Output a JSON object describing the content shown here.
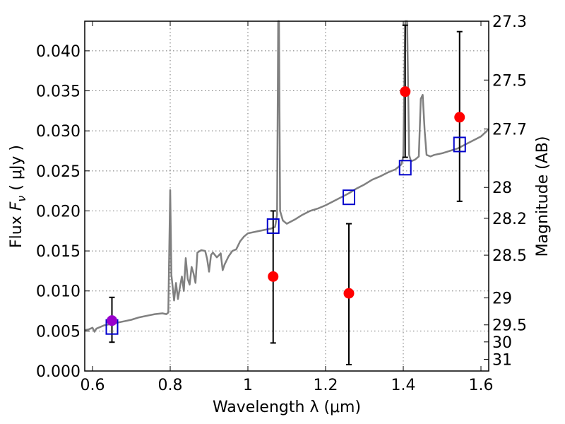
{
  "chart_data": {
    "type": "scatter",
    "xlabel": "Wavelength  λ (μm)",
    "ylabel": "Flux  F_ν  ( μJy )",
    "ylabel_parts": {
      "prefix": "Flux  ",
      "symbol": "F",
      "subscript": "ν",
      "suffix": "  ( μJy )"
    },
    "ylabel_right": "Magnitude (AB)",
    "xlim": [
      0.58,
      1.62
    ],
    "ylim": [
      0.0,
      0.0437
    ],
    "grid": true,
    "x_ticks": [
      0.6,
      0.8,
      1.0,
      1.2,
      1.4,
      1.6
    ],
    "x_tick_labels": [
      "0.6",
      "0.8",
      "1",
      "1.2",
      "1.4",
      "1.6"
    ],
    "y_ticks": [
      0.0,
      0.005,
      0.01,
      0.015,
      0.02,
      0.025,
      0.03,
      0.035,
      0.04
    ],
    "y_tick_labels": [
      "0.000",
      "0.005",
      "0.010",
      "0.015",
      "0.020",
      "0.025",
      "0.030",
      "0.035",
      "0.040"
    ],
    "right_axis": {
      "ticks": [
        27.3,
        27.5,
        27.7,
        28,
        28.2,
        28.5,
        29,
        29.5,
        30,
        31
      ],
      "tick_labels": [
        "27.3",
        "27.5",
        "27.7",
        "28",
        "28.2",
        "28.5",
        "29",
        "29.5",
        "30",
        "31"
      ],
      "zero_point_ujy": 0.0437,
      "zero_point_mag": 27.3
    },
    "template_spectrum": {
      "color": "#808080",
      "points": [
        [
          0.58,
          0.0051
        ],
        [
          0.59,
          0.0052
        ],
        [
          0.6,
          0.0054
        ],
        [
          0.605,
          0.0049
        ],
        [
          0.61,
          0.0053
        ],
        [
          0.62,
          0.0055
        ],
        [
          0.63,
          0.0057
        ],
        [
          0.64,
          0.0058
        ],
        [
          0.66,
          0.006
        ],
        [
          0.68,
          0.0062
        ],
        [
          0.7,
          0.0064
        ],
        [
          0.72,
          0.0067
        ],
        [
          0.74,
          0.0069
        ],
        [
          0.76,
          0.0071
        ],
        [
          0.78,
          0.0072
        ],
        [
          0.79,
          0.0071
        ],
        [
          0.795,
          0.0073
        ],
        [
          0.8,
          0.0226
        ],
        [
          0.803,
          0.012
        ],
        [
          0.81,
          0.0088
        ],
        [
          0.815,
          0.011
        ],
        [
          0.82,
          0.009
        ],
        [
          0.825,
          0.0105
        ],
        [
          0.83,
          0.0118
        ],
        [
          0.835,
          0.01
        ],
        [
          0.84,
          0.0141
        ],
        [
          0.845,
          0.0115
        ],
        [
          0.85,
          0.0108
        ],
        [
          0.855,
          0.013
        ],
        [
          0.86,
          0.0122
        ],
        [
          0.865,
          0.011
        ],
        [
          0.87,
          0.0148
        ],
        [
          0.88,
          0.0151
        ],
        [
          0.89,
          0.015
        ],
        [
          0.895,
          0.014
        ],
        [
          0.9,
          0.0124
        ],
        [
          0.905,
          0.0145
        ],
        [
          0.91,
          0.0148
        ],
        [
          0.92,
          0.0142
        ],
        [
          0.93,
          0.0147
        ],
        [
          0.935,
          0.0126
        ],
        [
          0.94,
          0.0133
        ],
        [
          0.95,
          0.0143
        ],
        [
          0.96,
          0.015
        ],
        [
          0.97,
          0.0152
        ],
        [
          0.98,
          0.0162
        ],
        [
          0.99,
          0.0168
        ],
        [
          1.0,
          0.0172
        ],
        [
          1.02,
          0.0174
        ],
        [
          1.04,
          0.0176
        ],
        [
          1.06,
          0.0178
        ],
        [
          1.07,
          0.018
        ],
        [
          1.075,
          0.0195
        ],
        [
          1.078,
          0.0437
        ],
        [
          1.08,
          0.0437
        ],
        [
          1.083,
          0.02
        ],
        [
          1.09,
          0.0188
        ],
        [
          1.1,
          0.0184
        ],
        [
          1.12,
          0.0189
        ],
        [
          1.14,
          0.0195
        ],
        [
          1.16,
          0.02
        ],
        [
          1.18,
          0.0203
        ],
        [
          1.2,
          0.0207
        ],
        [
          1.22,
          0.0212
        ],
        [
          1.24,
          0.0217
        ],
        [
          1.26,
          0.0222
        ],
        [
          1.28,
          0.0228
        ],
        [
          1.3,
          0.0233
        ],
        [
          1.32,
          0.0239
        ],
        [
          1.34,
          0.0243
        ],
        [
          1.36,
          0.0248
        ],
        [
          1.38,
          0.0252
        ],
        [
          1.395,
          0.0258
        ],
        [
          1.4,
          0.0268
        ],
        [
          1.405,
          0.0437
        ],
        [
          1.41,
          0.0437
        ],
        [
          1.415,
          0.027
        ],
        [
          1.42,
          0.0262
        ],
        [
          1.43,
          0.0264
        ],
        [
          1.44,
          0.0268
        ],
        [
          1.445,
          0.034
        ],
        [
          1.45,
          0.0345
        ],
        [
          1.455,
          0.03
        ],
        [
          1.46,
          0.027
        ],
        [
          1.47,
          0.0268
        ],
        [
          1.48,
          0.027
        ],
        [
          1.5,
          0.0272
        ],
        [
          1.52,
          0.0275
        ],
        [
          1.54,
          0.0278
        ],
        [
          1.56,
          0.0283
        ],
        [
          1.58,
          0.0288
        ],
        [
          1.6,
          0.0293
        ],
        [
          1.62,
          0.0302
        ]
      ]
    },
    "model_photometry": {
      "marker": "open-square",
      "color": "#0000cc",
      "x": [
        0.65,
        1.065,
        1.26,
        1.405,
        1.545
      ],
      "y": [
        0.0055,
        0.0181,
        0.0217,
        0.0254,
        0.0283
      ]
    },
    "observed_photometry": {
      "marker": "filled-circle",
      "color": "#ff0000",
      "x": [
        1.065,
        1.26,
        1.405,
        1.545
      ],
      "y": [
        0.0118,
        0.0097,
        0.0349,
        0.0317
      ],
      "yerr_low": [
        0.0035,
        0.0008,
        0.0267,
        0.0212
      ],
      "yerr_high": [
        0.02,
        0.0184,
        0.0432,
        0.0424
      ]
    },
    "observed_optical_point": {
      "marker": "filled-circle",
      "color": "#9900cc",
      "x": 0.65,
      "y": 0.0063,
      "yerr_low": 0.0036,
      "yerr_high": 0.0092
    }
  }
}
